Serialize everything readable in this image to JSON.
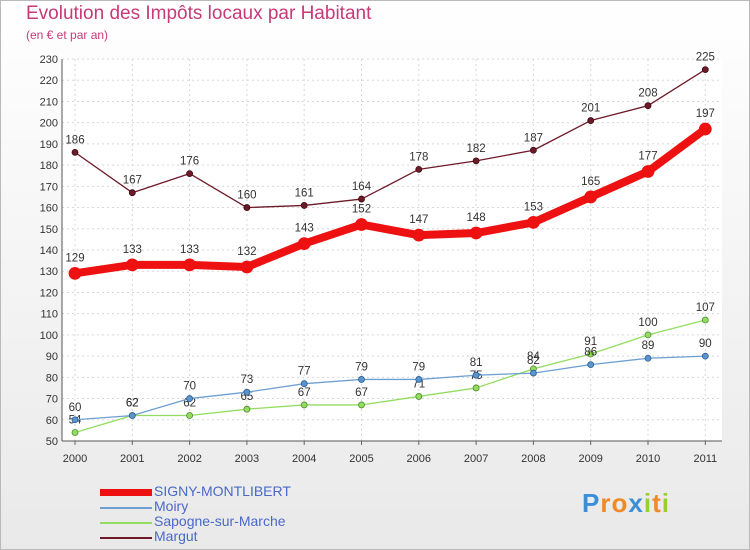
{
  "chart_data": {
    "type": "line",
    "title": "Evolution des Impôts locaux par Habitant",
    "subtitle": "(en € et par an)",
    "categories": [
      "2000",
      "2001",
      "2002",
      "2003",
      "2004",
      "2005",
      "2006",
      "2007",
      "2008",
      "2009",
      "2010",
      "2011"
    ],
    "ylim": [
      50,
      230
    ],
    "yticks": [
      50,
      60,
      70,
      80,
      90,
      100,
      110,
      120,
      130,
      140,
      150,
      160,
      170,
      180,
      190,
      200,
      210,
      220,
      230
    ],
    "grid": true,
    "legend_position": "bottom-left",
    "series": [
      {
        "name": "Margut",
        "color": "#6e1a28",
        "values": [
          186,
          167,
          176,
          160,
          161,
          164,
          178,
          182,
          187,
          201,
          208,
          225
        ]
      },
      {
        "name": "Sapogne-sur-Marche",
        "color": "#92dd60",
        "values": [
          54,
          62,
          62,
          65,
          67,
          67,
          71,
          75,
          84,
          91,
          100,
          107
        ]
      },
      {
        "name": "Moiry",
        "color": "#6e9fd2",
        "values": [
          60,
          62,
          70,
          73,
          77,
          79,
          79,
          81,
          82,
          86,
          89,
          90
        ]
      },
      {
        "name": "SIGNY-MONTLIBERT",
        "color": "#ee1111",
        "values": [
          129,
          133,
          133,
          132,
          143,
          152,
          147,
          148,
          153,
          165,
          177,
          197
        ]
      }
    ],
    "legend": [
      "SIGNY-MONTLIBERT",
      "Moiry",
      "Sapogne-sur-Marche",
      "Margut"
    ]
  },
  "logo": {
    "text": "Proxiti",
    "letters": [
      "P",
      "r",
      "o",
      "x",
      "i",
      "t",
      "i"
    ],
    "colors": [
      "#3a8fd6",
      "#f08a24",
      "#f08a24",
      "#3a8fd6",
      "#9acd32",
      "#f08a24",
      "#9acd32"
    ]
  }
}
